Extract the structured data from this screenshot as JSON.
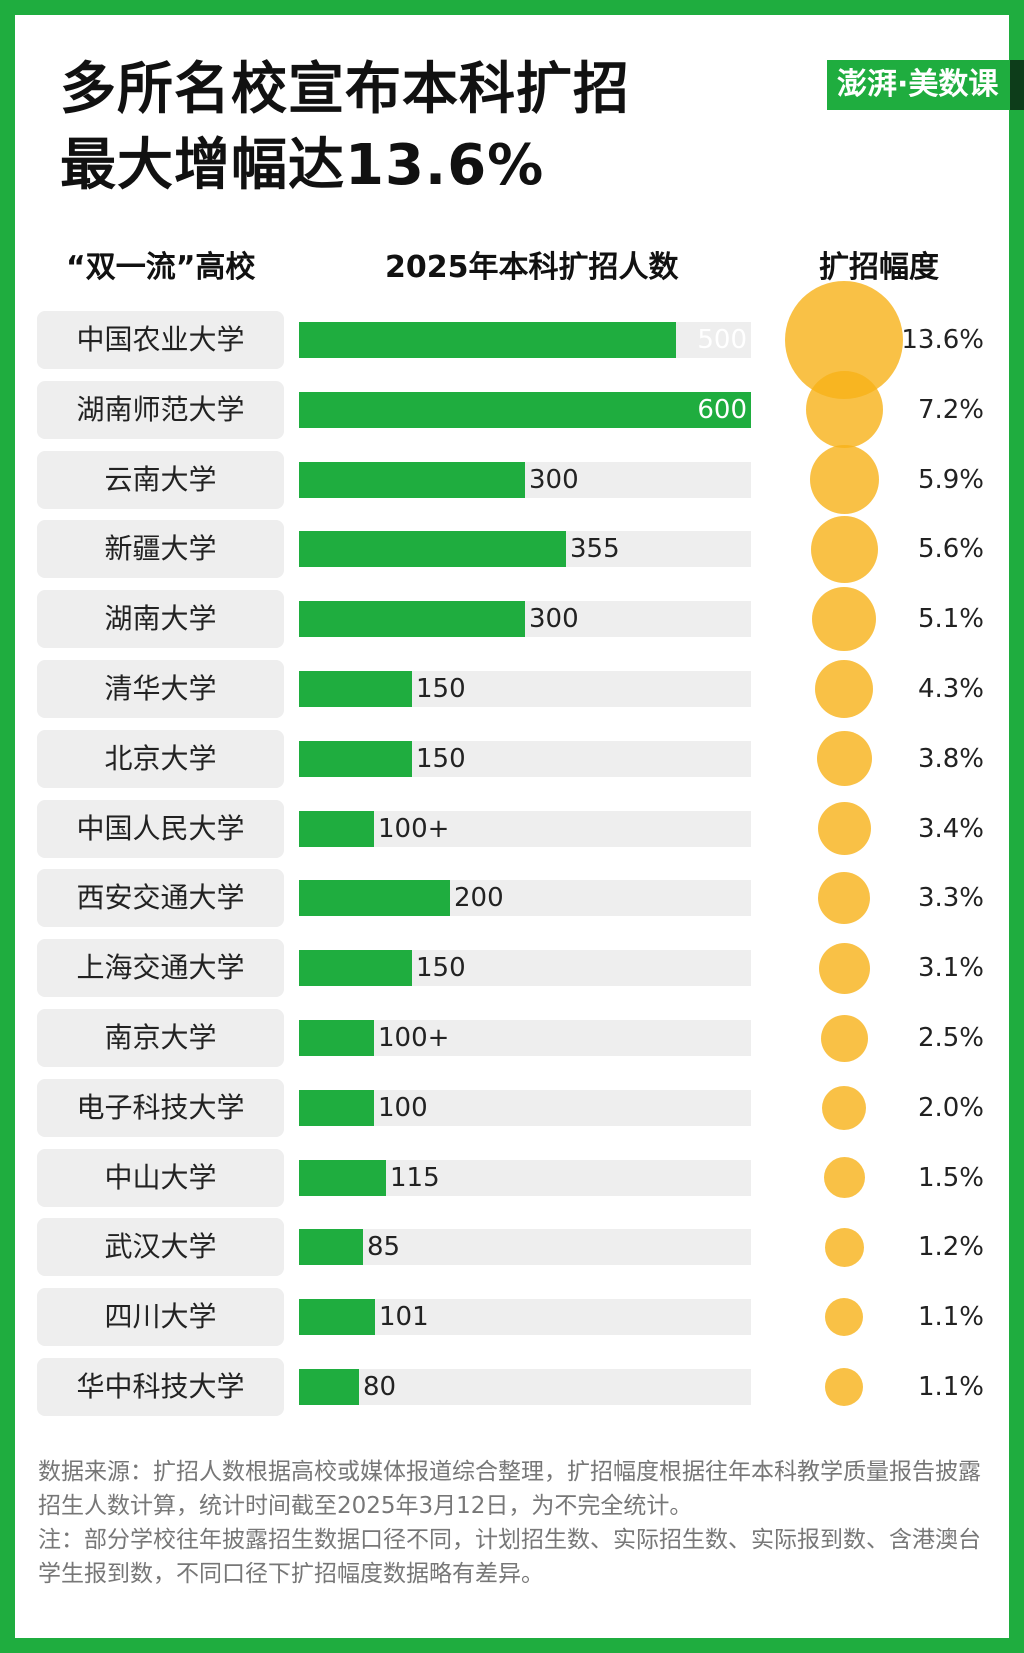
{
  "title_lines": [
    "多所名校宣布本科扩招",
    "最大增幅达13.6%"
  ],
  "logo": "澎湃·美数课",
  "columns": {
    "school": "“双一流”高校",
    "enrollment": "2025年本科扩招人数",
    "rate": "扩招幅度"
  },
  "colors": {
    "frame": "#1fad3f",
    "bar": "#1fad3f",
    "bubble": "#f7b218",
    "track": "#eeeeee"
  },
  "chart_data": {
    "type": "bar",
    "title": "多所名校宣布本科扩招 最大增幅达13.6%",
    "xlabel": "2025年本科扩招人数",
    "ylabel": "“双一流”高校",
    "xlim": [
      0,
      600
    ],
    "categories": [
      "中国农业大学",
      "湖南师范大学",
      "云南大学",
      "新疆大学",
      "湖南大学",
      "清华大学",
      "北京大学",
      "中国人民大学",
      "西安交通大学",
      "上海交通大学",
      "南京大学",
      "电子科技大学",
      "中山大学",
      "武汉大学",
      "四川大学",
      "华中科技大学"
    ],
    "series": [
      {
        "name": "2025年本科扩招人数",
        "values": [
          500,
          600,
          300,
          355,
          300,
          150,
          150,
          100,
          200,
          150,
          100,
          100,
          115,
          85,
          101,
          80
        ],
        "labels": [
          "500",
          "600",
          "300",
          "355",
          "300",
          "150",
          "150",
          "100+",
          "200",
          "150",
          "100+",
          "100",
          "115",
          "85",
          "101",
          "80"
        ]
      },
      {
        "name": "扩招幅度",
        "values": [
          13.6,
          7.2,
          5.9,
          5.6,
          5.1,
          4.3,
          3.8,
          3.4,
          3.3,
          3.1,
          2.5,
          2.0,
          1.5,
          1.2,
          1.1,
          1.1
        ],
        "labels": [
          "13.6%",
          "7.2%",
          "5.9%",
          "5.6%",
          "5.1%",
          "4.3%",
          "3.8%",
          "3.4%",
          "3.3%",
          "3.1%",
          "2.5%",
          "2.0%",
          "1.5%",
          "1.2%",
          "1.1%",
          "1.1%"
        ]
      }
    ]
  },
  "footnotes": [
    "数据来源：扩招人数根据高校或媒体报道综合整理，扩招幅度根据往年本科教学质量报告披露招生人数计算，统计时间截至2025年3月12日，为不完全统计。",
    "注：部分学校往年披露招生数据口径不同，计划招生数、实际招生数、实际报到数、含港澳台学生报到数，不同口径下扩招幅度数据略有差异。"
  ]
}
